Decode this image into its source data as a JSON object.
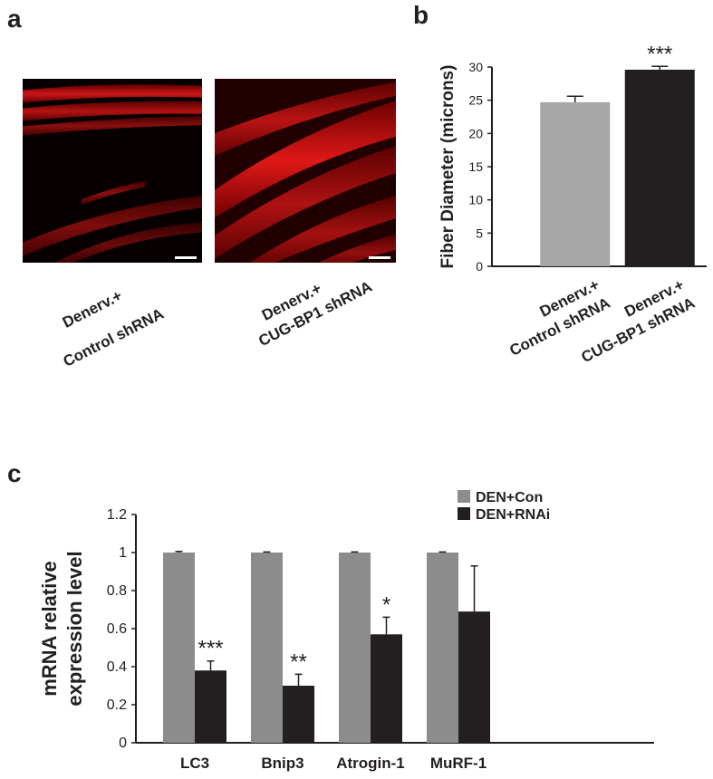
{
  "panel_labels": [
    "a",
    "b",
    "c"
  ],
  "images": {
    "captions": [
      [
        "Denerv.+",
        "Control  shRNA"
      ],
      [
        "Denerv.+",
        "CUG-BP1 shRNA"
      ]
    ]
  },
  "chart_data": [
    {
      "type": "bar",
      "ylabel": "Fiber Diameter (microns)",
      "categories": [
        [
          "Denerv.+",
          "Control shRNA"
        ],
        [
          "Denerv.+",
          "CUG-BP1 shRNA"
        ]
      ],
      "values": [
        24.7,
        29.6
      ],
      "errors": [
        0.9,
        0.5
      ],
      "colors": [
        "#a6a6a6",
        "#231f20"
      ],
      "significance": [
        null,
        "***"
      ],
      "ylim": [
        0,
        30
      ],
      "yticks": [
        0,
        5,
        10,
        15,
        20,
        25,
        30
      ]
    },
    {
      "type": "grouped-bar",
      "ylabel": [
        "mRNA relative",
        "expression level"
      ],
      "categories": [
        "LC3",
        "Bnip3",
        "Atrogin-1",
        "MuRF-1"
      ],
      "series": [
        {
          "name": "DEN+Con",
          "color": "#8c8c8c",
          "values": [
            1,
            1,
            1,
            1
          ],
          "errors": [
            0.006,
            0.003,
            0.003,
            0.003
          ]
        },
        {
          "name": "DEN+RNAi",
          "color": "#231f20",
          "values": [
            0.38,
            0.3,
            0.57,
            0.69
          ],
          "errors": [
            0.05,
            0.06,
            0.09,
            0.24
          ]
        }
      ],
      "significance": [
        "***",
        "**",
        "*",
        null
      ],
      "legend": "top-right",
      "ylim": [
        0,
        1.2
      ],
      "yticks": [
        0,
        0.2,
        0.4,
        0.6,
        0.8,
        1,
        1.2
      ]
    }
  ]
}
